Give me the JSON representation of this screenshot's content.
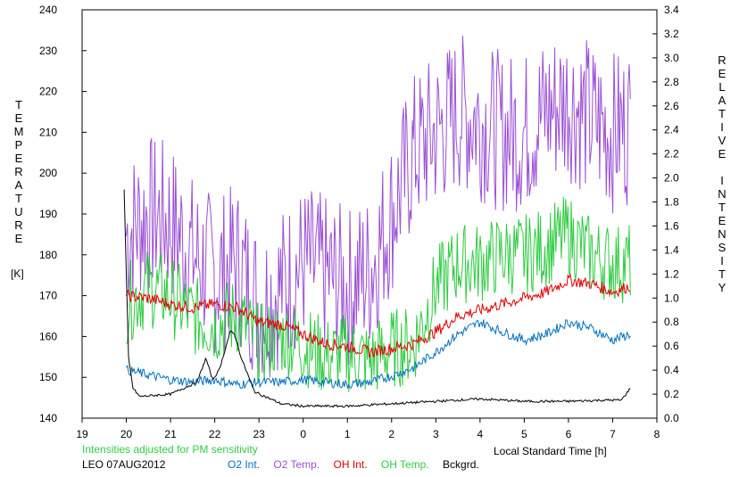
{
  "chart_data": {
    "type": "line",
    "xlabel": "Local Standard Time [h]",
    "ylabel_left": "TEMPERATURE",
    "ylabel_left_unit": "[K]",
    "ylabel_right": "RELATIVE INTENSITY",
    "x_ticks": [
      "19",
      "20",
      "21",
      "22",
      "23",
      "0",
      "1",
      "2",
      "3",
      "4",
      "5",
      "6",
      "7",
      "8"
    ],
    "x_range": [
      19,
      32
    ],
    "y_left_ticks": [
      140,
      150,
      160,
      170,
      180,
      190,
      200,
      210,
      220,
      230,
      240
    ],
    "y_left_range": [
      140,
      240
    ],
    "y_right_ticks": [
      "0.0",
      "0.2",
      "0.4",
      "0.6",
      "0.8",
      "1.0",
      "1.2",
      "1.4",
      "1.6",
      "1.8",
      "2.0",
      "2.2",
      "2.4",
      "2.6",
      "2.8",
      "3.0",
      "3.2",
      "3.4"
    ],
    "y_right_range": [
      0,
      3.4
    ],
    "grid": false,
    "note": "Intensities adjusted for PM sensitivity",
    "station_date": "LEO 07AUG2012",
    "legend": [
      {
        "label": "O2 Int.",
        "color": "#0070c0"
      },
      {
        "label": "O2 Temp.",
        "color": "#9b4fd6"
      },
      {
        "label": "OH Int.",
        "color": "#e00000"
      },
      {
        "label": "OH Temp.",
        "color": "#2ecc40"
      },
      {
        "label": "Bckgrd.",
        "color": "#000000"
      }
    ],
    "series": [
      {
        "name": "O2 Temp.",
        "axis": "left",
        "color": "#9b4fd6",
        "x": [
          20.0,
          20.5,
          21.0,
          21.5,
          22.0,
          22.5,
          23.0,
          23.5,
          24.0,
          24.5,
          25.0,
          25.5,
          26.0,
          26.5,
          27.0,
          27.5,
          28.0,
          28.5,
          29.0,
          29.5,
          30.0,
          30.5,
          31.0,
          31.4
        ],
        "y": [
          185,
          190,
          188,
          180,
          175,
          178,
          168,
          172,
          178,
          175,
          172,
          176,
          190,
          205,
          210,
          215,
          213,
          210,
          210,
          215,
          218,
          213,
          210,
          212
        ],
        "noise": 20
      },
      {
        "name": "OH Temp.",
        "axis": "left",
        "color": "#2ecc40",
        "x": [
          20.0,
          20.5,
          21.0,
          21.5,
          22.0,
          22.5,
          23.0,
          23.5,
          24.0,
          24.5,
          25.0,
          25.5,
          26.0,
          26.5,
          27.0,
          27.5,
          28.0,
          28.5,
          29.0,
          29.5,
          30.0,
          30.5,
          31.0,
          31.4
        ],
        "y": [
          168,
          172,
          170,
          165,
          163,
          165,
          158,
          160,
          158,
          155,
          156,
          154,
          157,
          158,
          172,
          178,
          178,
          180,
          180,
          182,
          185,
          180,
          178,
          178
        ],
        "noise": 10
      },
      {
        "name": "OH Int.",
        "axis": "right",
        "color": "#e00000",
        "x": [
          20.0,
          20.5,
          21.0,
          21.5,
          22.0,
          22.5,
          23.0,
          23.5,
          24.0,
          24.5,
          25.0,
          25.5,
          26.0,
          26.5,
          27.0,
          27.5,
          28.0,
          28.5,
          29.0,
          29.5,
          30.0,
          30.5,
          31.0,
          31.4
        ],
        "y": [
          1.02,
          1.0,
          0.95,
          0.92,
          0.95,
          0.92,
          0.8,
          0.78,
          0.7,
          0.62,
          0.6,
          0.55,
          0.58,
          0.62,
          0.72,
          0.85,
          0.9,
          0.95,
          1.0,
          1.05,
          1.15,
          1.12,
          1.05,
          1.1
        ],
        "noise": 0.05
      },
      {
        "name": "O2 Int.",
        "axis": "right",
        "color": "#0070c0",
        "x": [
          20.0,
          20.5,
          21.0,
          21.5,
          22.0,
          22.5,
          23.0,
          23.5,
          24.0,
          24.5,
          25.0,
          25.5,
          26.0,
          26.5,
          27.0,
          27.5,
          28.0,
          28.5,
          29.0,
          29.5,
          30.0,
          30.5,
          31.0,
          31.4
        ],
        "y": [
          0.4,
          0.36,
          0.32,
          0.3,
          0.32,
          0.28,
          0.3,
          0.3,
          0.32,
          0.3,
          0.28,
          0.3,
          0.35,
          0.42,
          0.55,
          0.7,
          0.8,
          0.72,
          0.65,
          0.7,
          0.8,
          0.75,
          0.65,
          0.7
        ],
        "noise": 0.04
      },
      {
        "name": "Bckgrd.",
        "axis": "right",
        "color": "#000000",
        "x": [
          19.95,
          20.05,
          20.15,
          20.3,
          21.0,
          21.6,
          21.8,
          21.95,
          22.1,
          22.35,
          22.45,
          22.6,
          22.9,
          23.5,
          24.0,
          25.0,
          26.0,
          27.0,
          28.0,
          29.0,
          30.0,
          30.8,
          31.2,
          31.4
        ],
        "y": [
          1.9,
          0.5,
          0.25,
          0.18,
          0.2,
          0.3,
          0.5,
          0.32,
          0.4,
          0.72,
          0.7,
          0.5,
          0.22,
          0.12,
          0.1,
          0.1,
          0.12,
          0.14,
          0.16,
          0.14,
          0.14,
          0.15,
          0.15,
          0.25
        ],
        "noise": 0.01
      }
    ]
  }
}
